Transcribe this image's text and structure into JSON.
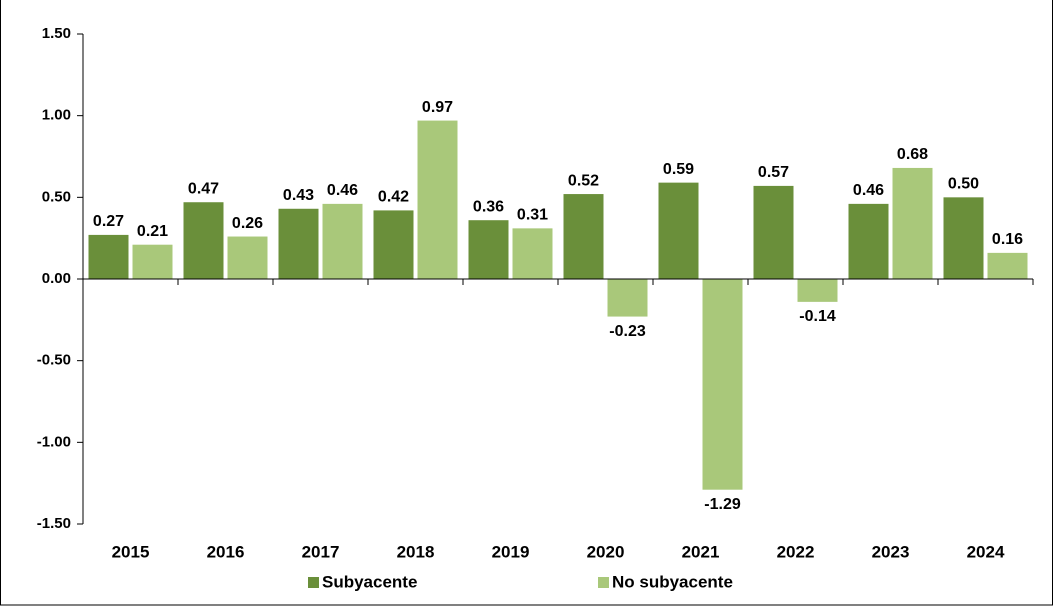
{
  "chart_data": {
    "type": "bar",
    "categories": [
      "2015",
      "2016",
      "2017",
      "2018",
      "2019",
      "2020",
      "2021",
      "2022",
      "2023",
      "2024"
    ],
    "series": [
      {
        "name": "Subyacente",
        "color": "#6a8f3a",
        "values": [
          0.27,
          0.47,
          0.43,
          0.42,
          0.36,
          0.52,
          0.59,
          0.57,
          0.46,
          0.5
        ],
        "value_labels": [
          "0.27",
          "0.47",
          "0.43",
          "0.42",
          "0.36",
          "0.52",
          "0.59",
          "0.57",
          "0.46",
          "0.50"
        ]
      },
      {
        "name": "No subyacente",
        "color": "#a9c87a",
        "values": [
          0.21,
          0.26,
          0.46,
          0.97,
          0.31,
          -0.23,
          -1.29,
          -0.14,
          0.68,
          0.16
        ],
        "value_labels": [
          "0.21",
          "0.26",
          "0.46",
          "0.97",
          "0.31",
          "-0.23",
          "-1.29",
          "-0.14",
          "0.68",
          "0.16"
        ]
      }
    ],
    "ylim": [
      -1.5,
      1.5
    ],
    "yticks": [
      {
        "value": -1.5,
        "label": "-1.50"
      },
      {
        "value": -1,
        "label": "-1.00"
      },
      {
        "value": -0.5,
        "label": "-0.50"
      },
      {
        "value": 0,
        "label": "0.00"
      },
      {
        "value": 0.5,
        "label": "0.50"
      },
      {
        "value": 1,
        "label": "1.00"
      },
      {
        "value": 1.5,
        "label": "1.50"
      }
    ],
    "legend": "bottom"
  }
}
